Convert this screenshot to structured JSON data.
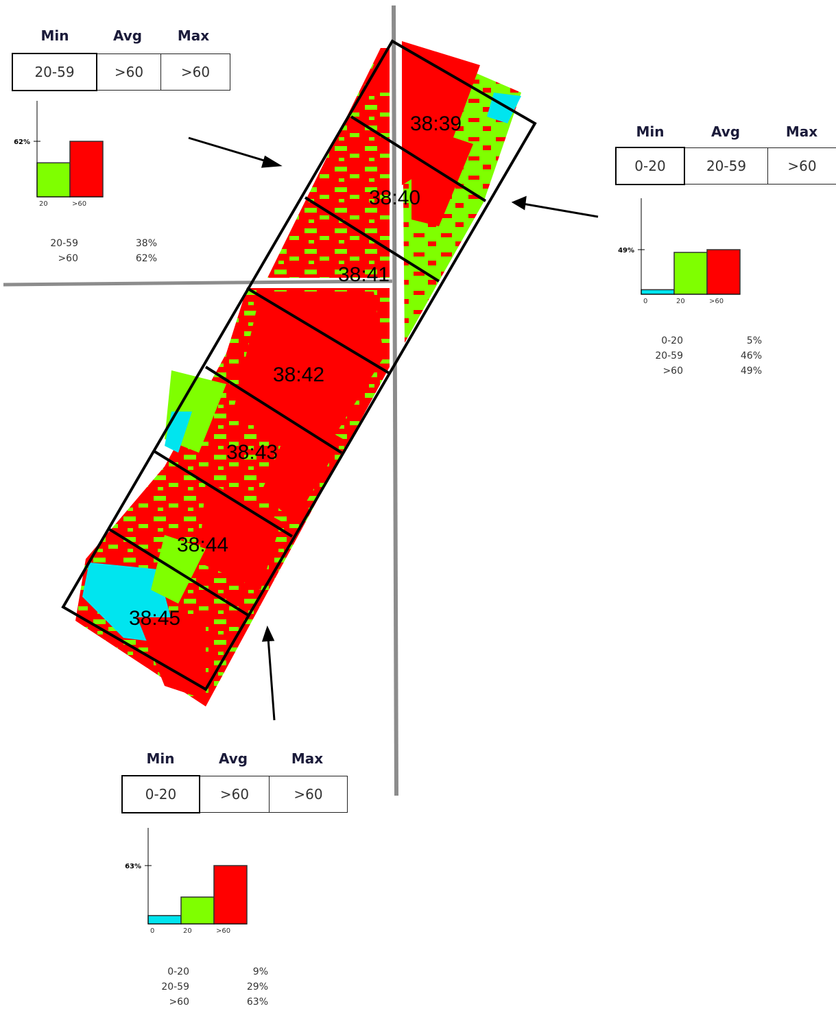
{
  "colors": {
    "low": "#00e5ef",
    "mid": "#7fff00",
    "high": "#ff0000",
    "road": "#8c8c8c",
    "outline": "#000000"
  },
  "headers": {
    "min": "Min",
    "avg": "Avg",
    "max": "Max"
  },
  "zones": [
    "38:39",
    "38:40",
    "38:41",
    "38:42",
    "38:43",
    "38:44",
    "38:45"
  ],
  "panels": {
    "top_left": {
      "min": "20-59",
      "avg": ">60",
      "max": ">60",
      "peak_label": "62%",
      "bins": [
        {
          "label": "20-59",
          "percent": 38,
          "tick": "20",
          "color": "#7fff00",
          "pct_text": "38%"
        },
        {
          "label": ">60",
          "percent": 62,
          "tick": ">60",
          "color": "#ff0000",
          "pct_text": "62%"
        }
      ]
    },
    "right": {
      "min": "0-20",
      "avg": "20-59",
      "max": ">60",
      "peak_label": "49%",
      "bins": [
        {
          "label": "0-20",
          "percent": 5,
          "tick": "0",
          "color": "#00e5ef",
          "pct_text": "5%"
        },
        {
          "label": "20-59",
          "percent": 46,
          "tick": "20",
          "color": "#7fff00",
          "pct_text": "46%"
        },
        {
          "label": ">60",
          "percent": 49,
          "tick": ">60",
          "color": "#ff0000",
          "pct_text": "49%"
        }
      ]
    },
    "bottom": {
      "min": "0-20",
      "avg": ">60",
      "max": ">60",
      "peak_label": "63%",
      "bins": [
        {
          "label": "0-20",
          "percent": 9,
          "tick": "0",
          "color": "#00e5ef",
          "pct_text": "9%"
        },
        {
          "label": "20-59",
          "percent": 29,
          "tick": "20",
          "color": "#7fff00",
          "pct_text": "29%"
        },
        {
          "label": ">60",
          "percent": 63,
          "tick": ">60",
          "color": "#ff0000",
          "pct_text": "63%"
        }
      ]
    }
  }
}
